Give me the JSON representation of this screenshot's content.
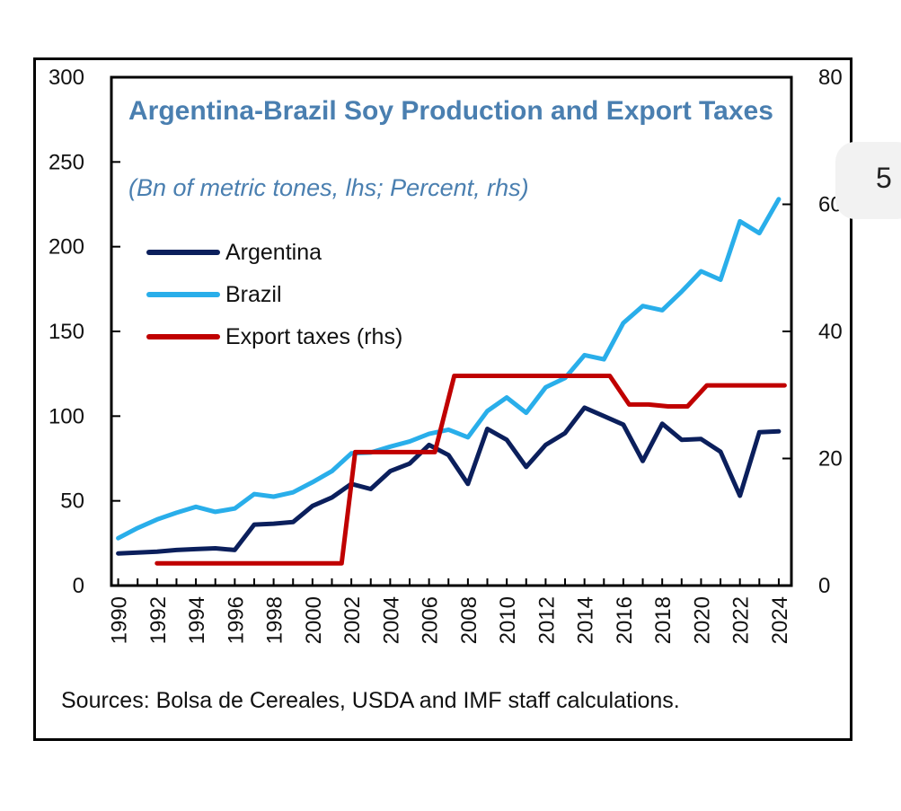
{
  "page_fragment": {
    "text": "5"
  },
  "chart_data": {
    "type": "line",
    "title": "Argentina-Brazil Soy Production and Export Taxes",
    "subtitle": "(Bn of metric tones, lhs; Percent, rhs)",
    "source": "Sources: Bolsa de Cereales, USDA and IMF staff calculations.",
    "x": [
      1990,
      1991,
      1992,
      1993,
      1994,
      1995,
      1996,
      1997,
      1998,
      1999,
      2000,
      2001,
      2002,
      2003,
      2004,
      2005,
      2006,
      2007,
      2008,
      2009,
      2010,
      2011,
      2012,
      2013,
      2014,
      2015,
      2016,
      2017,
      2018,
      2019,
      2020,
      2021,
      2022,
      2023,
      2024
    ],
    "x_ticks": [
      1990,
      1992,
      1994,
      1996,
      1998,
      2000,
      2002,
      2004,
      2006,
      2008,
      2010,
      2012,
      2014,
      2016,
      2018,
      2020,
      2022,
      2024
    ],
    "x_tick_labels": [
      "1990",
      "1992",
      "1994",
      "1996",
      "1998",
      "2000",
      "2002",
      "2004",
      "2006",
      "2008",
      "2010",
      "2012",
      "2014",
      "2016",
      "2018",
      "2020",
      "2022",
      "2024"
    ],
    "ylim": [
      0,
      300
    ],
    "y_ticks": [
      0,
      50,
      100,
      150,
      200,
      250,
      300
    ],
    "y_tick_labels": [
      "0",
      "50",
      "100",
      "150",
      "200",
      "250",
      "300"
    ],
    "y2lim": [
      0,
      80
    ],
    "y2_ticks": [
      0,
      20,
      40,
      60,
      80
    ],
    "y2_tick_labels": [
      "0",
      "20",
      "40",
      "60",
      "80"
    ],
    "legend_position": "upper-left",
    "series": [
      {
        "name": "Argentina",
        "axis": "left",
        "color": "#0b1f5c",
        "x": [
          1990,
          1991,
          1992,
          1993,
          1994,
          1995,
          1996,
          1997,
          1998,
          1999,
          2000,
          2001,
          2002,
          2003,
          2004,
          2005,
          2006,
          2007,
          2008,
          2009,
          2010,
          2011,
          2012,
          2013,
          2014,
          2015,
          2016,
          2017,
          2018,
          2019,
          2020,
          2021,
          2022,
          2023,
          2024
        ],
        "values": [
          19,
          19.5,
          20,
          21,
          21.5,
          22,
          21,
          36,
          36.5,
          37.5,
          47,
          52,
          60,
          57,
          67.5,
          72,
          83,
          77,
          60,
          92.5,
          86,
          70,
          83,
          90,
          105,
          100,
          95,
          73.5,
          95.5,
          86,
          86.5,
          79,
          53,
          90.5,
          91
        ]
      },
      {
        "name": "Brazil",
        "axis": "left",
        "color": "#29aeea",
        "x": [
          1990,
          1991,
          1992,
          1993,
          1994,
          1995,
          1996,
          1997,
          1998,
          1999,
          2000,
          2001,
          2002,
          2003,
          2004,
          2005,
          2006,
          2007,
          2008,
          2009,
          2010,
          2011,
          2012,
          2013,
          2014,
          2015,
          2016,
          2017,
          2018,
          2019,
          2020,
          2021,
          2022,
          2023,
          2024
        ],
        "values": [
          28,
          34,
          39,
          43,
          46.5,
          43.5,
          45.5,
          54,
          52.5,
          55,
          61,
          67.5,
          78,
          78.5,
          82,
          85,
          89.5,
          92,
          87.5,
          103,
          111,
          102,
          117,
          122.5,
          136,
          133.5,
          155,
          165,
          162.5,
          173.5,
          185.5,
          180.5,
          215,
          208,
          228
        ]
      },
      {
        "name": "Export taxes (rhs)",
        "axis": "right",
        "color": "#c00000",
        "x": [
          1992,
          2001.5,
          2002.2,
          2006.3,
          2007.3,
          2015.3,
          2016.3,
          2017.3,
          2018.3,
          2019.3,
          2020.3,
          2021.3,
          2024.3
        ],
        "values": [
          3.5,
          3.5,
          21,
          21,
          33,
          33,
          28.5,
          28.5,
          28.2,
          28.2,
          31.5,
          31.5,
          31.5
        ]
      }
    ]
  }
}
